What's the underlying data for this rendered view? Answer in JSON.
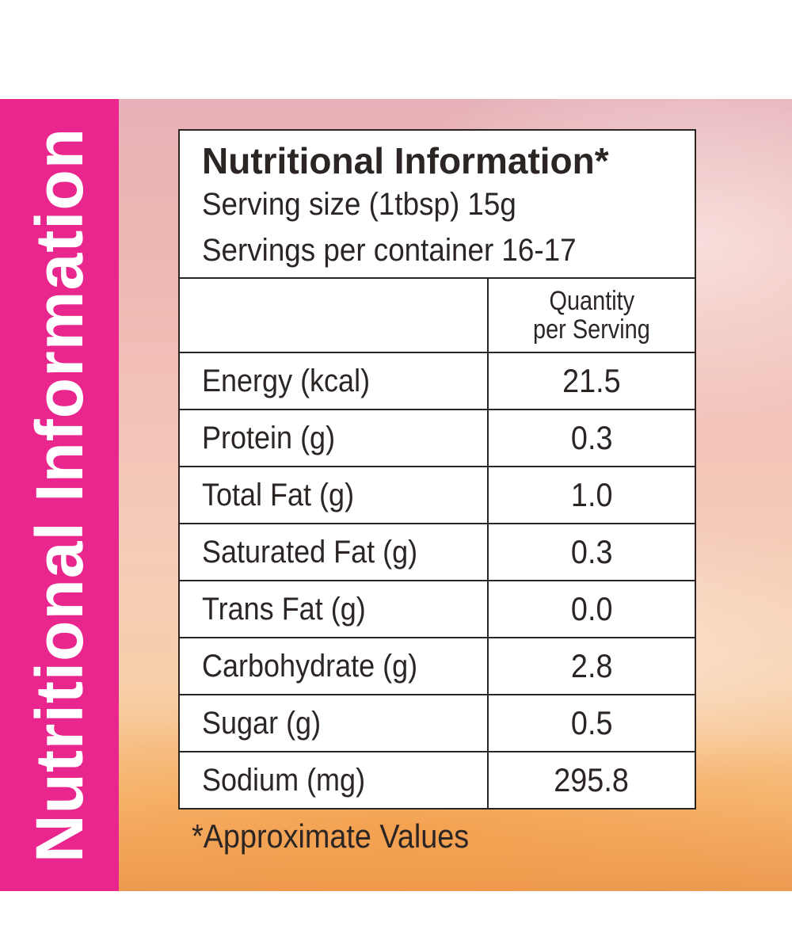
{
  "side_title": "Nutritional Information",
  "header": {
    "title": "Nutritional Information*",
    "serving_size": "Serving size (1tbsp) 15g",
    "servings_per_container": "Servings per container 16-17"
  },
  "table": {
    "column_header_line1": "Quantity",
    "column_header_line2": "per Serving",
    "rows": [
      {
        "name": "Energy (kcal)",
        "value": "21.5"
      },
      {
        "name": "Protein (g)",
        "value": "0.3"
      },
      {
        "name": "Total Fat (g)",
        "value": "1.0"
      },
      {
        "name": "Saturated Fat (g)",
        "value": "0.3"
      },
      {
        "name": "Trans Fat (g)",
        "value": "0.0"
      },
      {
        "name": "Carbohydrate (g)",
        "value": "2.8"
      },
      {
        "name": "Sugar (g)",
        "value": "0.5"
      },
      {
        "name": "Sodium (mg)",
        "value": "295.8"
      }
    ]
  },
  "footnote": "*Approximate Values",
  "colors": {
    "band": "#e8268e",
    "text": "#2b2524",
    "box_background": "#ffffff"
  }
}
